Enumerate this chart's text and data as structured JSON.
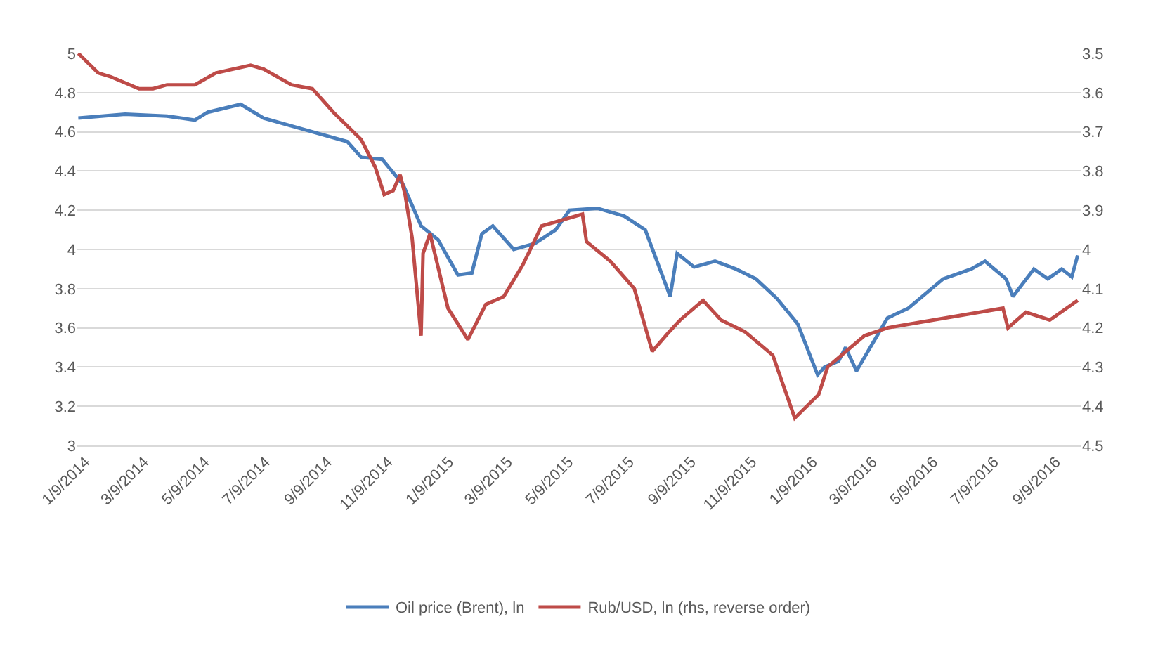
{
  "chart_data": {
    "type": "line",
    "series": [
      {
        "name": "Oil price (Brent), ln",
        "color": "#4a7ebb",
        "x": [
          "2014-01-02",
          "2014-02-18",
          "2014-04-01",
          "2014-04-29",
          "2014-05-12",
          "2014-06-14",
          "2014-07-07",
          "2014-08-18",
          "2014-09-29",
          "2014-10-13",
          "2014-11-03",
          "2014-11-24",
          "2014-12-12",
          "2014-12-29",
          "2015-01-18",
          "2015-02-01",
          "2015-02-11",
          "2015-02-22",
          "2015-03-15",
          "2015-04-05",
          "2015-04-26",
          "2015-05-10",
          "2015-06-07",
          "2015-07-04",
          "2015-07-25",
          "2015-08-19",
          "2015-08-26",
          "2015-09-12",
          "2015-10-03",
          "2015-10-24",
          "2015-11-13",
          "2015-12-04",
          "2015-12-25",
          "2016-01-14",
          "2016-01-21",
          "2016-02-04",
          "2016-02-11",
          "2016-02-22",
          "2016-03-24",
          "2016-04-14",
          "2016-05-19",
          "2016-06-16",
          "2016-06-30",
          "2016-07-21",
          "2016-07-28",
          "2016-08-18",
          "2016-09-01",
          "2016-09-15",
          "2016-09-25",
          "2016-10-01"
        ],
        "values": [
          4.67,
          4.69,
          4.68,
          4.66,
          4.7,
          4.74,
          4.67,
          4.61,
          4.55,
          4.47,
          4.46,
          4.33,
          4.12,
          4.05,
          3.87,
          3.88,
          4.08,
          4.12,
          4.0,
          4.03,
          4.1,
          4.2,
          4.21,
          4.17,
          4.1,
          3.76,
          3.98,
          3.91,
          3.94,
          3.9,
          3.85,
          3.75,
          3.62,
          3.36,
          3.4,
          3.43,
          3.5,
          3.38,
          3.65,
          3.7,
          3.85,
          3.9,
          3.94,
          3.85,
          3.76,
          3.9,
          3.85,
          3.9,
          3.86,
          3.97
        ]
      },
      {
        "name": "Rub/USD, ln (rhs, reverse order)",
        "color": "#be4b48",
        "axis": "y2",
        "x": [
          "2014-01-02",
          "2014-01-22",
          "2014-02-04",
          "2014-03-04",
          "2014-03-18",
          "2014-04-01",
          "2014-04-29",
          "2014-05-20",
          "2014-06-24",
          "2014-07-07",
          "2014-08-04",
          "2014-08-25",
          "2014-09-15",
          "2014-10-13",
          "2014-10-27",
          "2014-11-05",
          "2014-11-14",
          "2014-11-21",
          "2014-11-26",
          "2014-12-03",
          "2014-12-12",
          "2014-12-14",
          "2014-12-21",
          "2015-01-08",
          "2015-01-28",
          "2015-02-15",
          "2015-03-05",
          "2015-03-24",
          "2015-04-12",
          "2015-05-23",
          "2015-05-27",
          "2015-06-20",
          "2015-07-14",
          "2015-08-01",
          "2015-08-18",
          "2015-08-29",
          "2015-09-21",
          "2015-10-09",
          "2015-11-02",
          "2015-11-30",
          "2015-12-22",
          "2016-01-15",
          "2016-01-24",
          "2016-03-01",
          "2016-03-24",
          "2016-05-09",
          "2016-07-18",
          "2016-07-23",
          "2016-08-10",
          "2016-09-03",
          "2016-10-01"
        ],
        "values": [
          3.5,
          3.55,
          3.56,
          3.59,
          3.59,
          3.58,
          3.58,
          3.55,
          3.53,
          3.54,
          3.58,
          3.59,
          3.65,
          3.72,
          3.79,
          3.86,
          3.85,
          3.81,
          3.86,
          3.97,
          4.22,
          4.01,
          3.96,
          4.15,
          4.23,
          4.14,
          4.12,
          4.04,
          3.94,
          3.91,
          3.98,
          4.03,
          4.1,
          4.26,
          4.21,
          4.18,
          4.13,
          4.18,
          4.21,
          4.27,
          4.43,
          4.37,
          4.3,
          4.22,
          4.2,
          4.18,
          4.15,
          4.2,
          4.16,
          4.18,
          4.13
        ]
      }
    ],
    "xlim": [
      "2014-01-01",
      "2016-10-04"
    ],
    "xticks": [
      {
        "value": "2014-01-09",
        "label": "1/9/2014"
      },
      {
        "value": "2014-03-09",
        "label": "3/9/2014"
      },
      {
        "value": "2014-05-09",
        "label": "5/9/2014"
      },
      {
        "value": "2014-07-09",
        "label": "7/9/2014"
      },
      {
        "value": "2014-09-09",
        "label": "9/9/2014"
      },
      {
        "value": "2014-11-09",
        "label": "11/9/2014"
      },
      {
        "value": "2015-01-09",
        "label": "1/9/2015"
      },
      {
        "value": "2015-03-09",
        "label": "3/9/2015"
      },
      {
        "value": "2015-05-09",
        "label": "5/9/2015"
      },
      {
        "value": "2015-07-09",
        "label": "7/9/2015"
      },
      {
        "value": "2015-09-09",
        "label": "9/9/2015"
      },
      {
        "value": "2015-11-09",
        "label": "11/9/2015"
      },
      {
        "value": "2016-01-09",
        "label": "1/9/2016"
      },
      {
        "value": "2016-03-09",
        "label": "3/9/2016"
      },
      {
        "value": "2016-05-09",
        "label": "5/9/2016"
      },
      {
        "value": "2016-07-09",
        "label": "7/9/2016"
      },
      {
        "value": "2016-09-09",
        "label": "9/9/2016"
      }
    ],
    "ylim": [
      3,
      5
    ],
    "yticks": [
      3,
      3.2,
      3.4,
      3.6,
      3.8,
      4,
      4.2,
      4.4,
      4.6,
      4.8,
      5
    ],
    "y2lim": [
      4.5,
      3.5
    ],
    "y2ticks": [
      3.5,
      3.6,
      3.7,
      3.8,
      3.9,
      4,
      4.1,
      4.2,
      4.3,
      4.4,
      4.5
    ],
    "grid": "y",
    "legend": "bottom",
    "marker": "none",
    "line_style": "solid"
  }
}
